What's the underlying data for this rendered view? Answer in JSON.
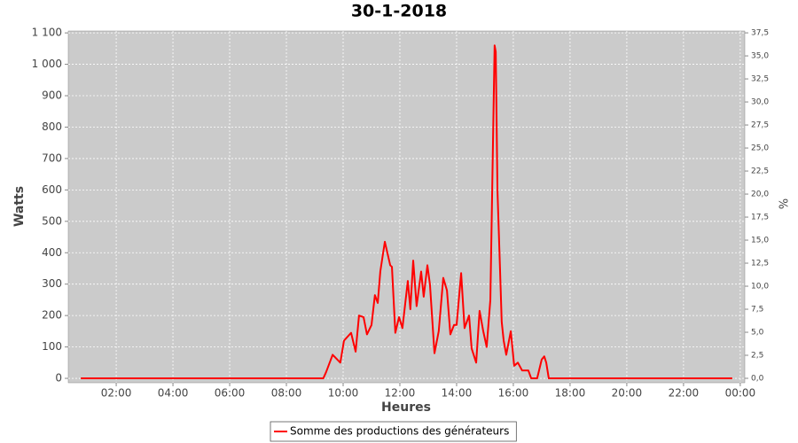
{
  "chart_data": {
    "type": "line",
    "title": "30-1-2018",
    "x_label": "Heures",
    "y_label": "Watts",
    "y2_label": "%",
    "x": [
      0.75,
      9.3,
      9.4,
      9.63,
      9.9,
      10.03,
      10.28,
      10.44,
      10.56,
      10.72,
      10.84,
      11.0,
      11.12,
      11.22,
      11.31,
      11.47,
      11.66,
      11.72,
      11.84,
      11.97,
      12.09,
      12.28,
      12.37,
      12.47,
      12.59,
      12.75,
      12.84,
      12.97,
      13.06,
      13.22,
      13.37,
      13.53,
      13.66,
      13.78,
      13.91,
      14.0,
      14.16,
      14.28,
      14.44,
      14.53,
      14.69,
      14.81,
      14.94,
      15.06,
      15.19,
      15.34,
      15.38,
      15.44,
      15.53,
      15.59,
      15.66,
      15.75,
      15.91,
      16.03,
      16.16,
      16.31,
      16.53,
      16.63,
      16.84,
      17.0,
      17.09,
      17.16,
      17.25,
      23.72
    ],
    "series": [
      {
        "name": "Somme des productions des  générateurs",
        "color": "#ff0000",
        "values": [
          0,
          0,
          20,
          75,
          50,
          120,
          145,
          85,
          200,
          195,
          140,
          170,
          265,
          240,
          340,
          435,
          360,
          355,
          145,
          195,
          160,
          310,
          220,
          375,
          230,
          340,
          260,
          360,
          300,
          80,
          150,
          320,
          280,
          140,
          170,
          170,
          335,
          160,
          200,
          95,
          50,
          215,
          150,
          100,
          250,
          1060,
          1040,
          600,
          350,
          180,
          120,
          75,
          150,
          40,
          50,
          25,
          25,
          0,
          0,
          60,
          70,
          50,
          0,
          0
        ]
      }
    ],
    "xlim": [
      0.31,
      24.16
    ],
    "ylim": [
      -14,
      1106
    ],
    "y2lim": [
      -0.48,
      37.7
    ],
    "xticks": [
      {
        "value": 2,
        "label": "02:00"
      },
      {
        "value": 4,
        "label": "04:00"
      },
      {
        "value": 6,
        "label": "06:00"
      },
      {
        "value": 8,
        "label": "08:00"
      },
      {
        "value": 10,
        "label": "10:00"
      },
      {
        "value": 12,
        "label": "12:00"
      },
      {
        "value": 14,
        "label": "14:00"
      },
      {
        "value": 16,
        "label": "16:00"
      },
      {
        "value": 18,
        "label": "18:00"
      },
      {
        "value": 20,
        "label": "20:00"
      },
      {
        "value": 22,
        "label": "22:00"
      },
      {
        "value": 24,
        "label": "00:00"
      }
    ],
    "yticks": [
      0,
      100,
      200,
      300,
      400,
      500,
      600,
      700,
      800,
      900,
      {
        "value": 1000,
        "label": "1 000"
      },
      {
        "value": 1100,
        "label": "1 100"
      }
    ],
    "y2ticks": [
      {
        "value": 0,
        "label": "0,0"
      },
      {
        "value": 2.5,
        "label": "2,5"
      },
      {
        "value": 5,
        "label": "5,0"
      },
      {
        "value": 7.5,
        "label": "7,5"
      },
      {
        "value": 10,
        "label": "10,0"
      },
      {
        "value": 12.5,
        "label": "12,5"
      },
      {
        "value": 15,
        "label": "15,0"
      },
      {
        "value": 17.5,
        "label": "17,5"
      },
      {
        "value": 20,
        "label": "20,0"
      },
      {
        "value": 22.5,
        "label": "22,5"
      },
      {
        "value": 25,
        "label": "25,0"
      },
      {
        "value": 27.5,
        "label": "27,5"
      },
      {
        "value": 30,
        "label": "30,0"
      },
      {
        "value": 32.5,
        "label": "32,5"
      },
      {
        "value": 35,
        "label": "35,0"
      },
      {
        "value": 37.5,
        "label": "37,5"
      }
    ],
    "grid": true,
    "legend": "bottom"
  }
}
